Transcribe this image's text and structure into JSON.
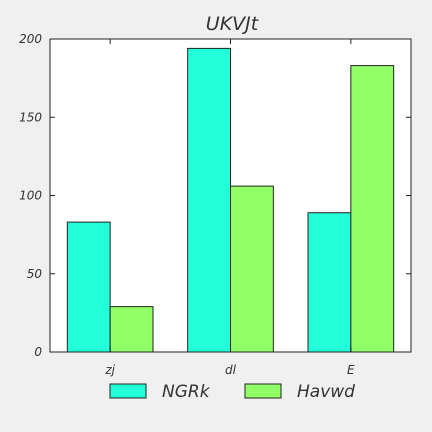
{
  "chart_data": {
    "type": "bar",
    "title": "UKVJt",
    "xlabel": "",
    "ylabel": "",
    "categories": [
      "zj",
      "dl",
      "E"
    ],
    "series": [
      {
        "name": "NGRk",
        "values": [
          83,
          194,
          89
        ],
        "color": "#22ffd9"
      },
      {
        "name": "Havwd",
        "values": [
          29,
          106,
          183
        ],
        "color": "#91ff66"
      }
    ],
    "ylim": [
      0,
      200
    ],
    "yticks": [
      0,
      50,
      100,
      150,
      200
    ],
    "grid": false,
    "legend_position": "bottom-center"
  }
}
